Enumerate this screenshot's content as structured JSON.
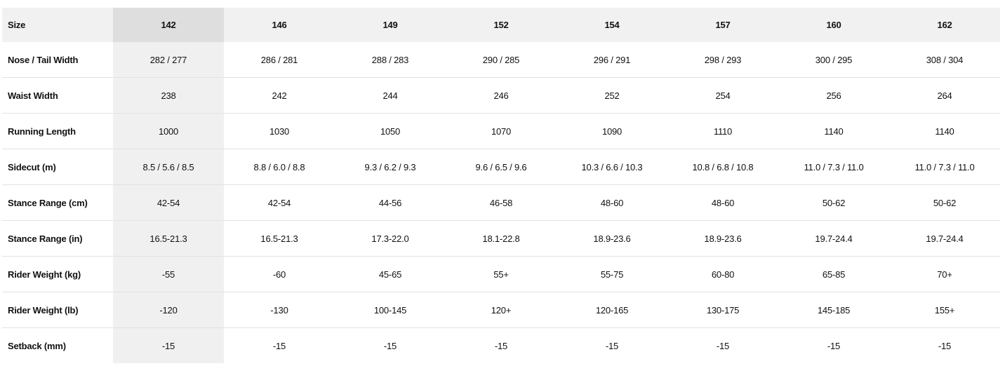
{
  "table": {
    "header": [
      "Size",
      "142",
      "146",
      "149",
      "152",
      "154",
      "157",
      "160",
      "162"
    ],
    "rows": [
      [
        "Nose / Tail Width",
        "282 / 277",
        "286 / 281",
        "288 / 283",
        "290 / 285",
        "296 / 291",
        "298 / 293",
        "300 / 295",
        "308 / 304"
      ],
      [
        "Waist Width",
        "238",
        "242",
        "244",
        "246",
        "252",
        "254",
        "256",
        "264"
      ],
      [
        "Running Length",
        "1000",
        "1030",
        "1050",
        "1070",
        "1090",
        "1110",
        "1140",
        "1140"
      ],
      [
        "Sidecut (m)",
        "8.5 / 5.6 / 8.5",
        "8.8 / 6.0 / 8.8",
        "9.3 / 6.2 / 9.3",
        "9.6 / 6.5 / 9.6",
        "10.3 / 6.6 / 10.3",
        "10.8 / 6.8 / 10.8",
        "11.0 / 7.3 / 11.0",
        "11.0 / 7.3 / 11.0"
      ],
      [
        "Stance Range (cm)",
        "42-54",
        "42-54",
        "44-56",
        "46-58",
        "48-60",
        "48-60",
        "50-62",
        "50-62"
      ],
      [
        "Stance Range (in)",
        "16.5-21.3",
        "16.5-21.3",
        "17.3-22.0",
        "18.1-22.8",
        "18.9-23.6",
        "18.9-23.6",
        "19.7-24.4",
        "19.7-24.4"
      ],
      [
        "Rider Weight (kg)",
        "-55",
        "-60",
        "45-65",
        "55+",
        "55-75",
        "60-80",
        "65-85",
        "70+"
      ],
      [
        "Rider Weight (lb)",
        "-120",
        "-130",
        "100-145",
        "120+",
        "120-165",
        "130-175",
        "145-185",
        "155+"
      ],
      [
        "Setback (mm)",
        "-15",
        "-15",
        "-15",
        "-15",
        "-15",
        "-15",
        "-15",
        "-15"
      ]
    ]
  }
}
